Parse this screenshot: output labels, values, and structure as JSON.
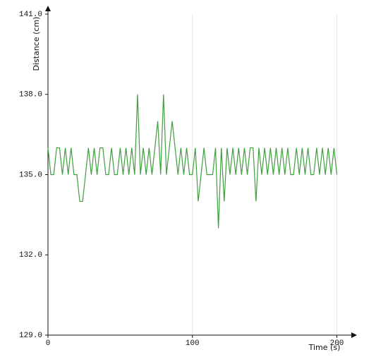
{
  "chart_data": {
    "type": "line",
    "x_label": "Time (s)",
    "y_label": "Distance (cm)",
    "x": [
      0,
      2,
      4,
      6,
      8,
      10,
      12,
      14,
      16,
      18,
      20,
      22,
      24,
      26,
      28,
      30,
      32,
      34,
      36,
      38,
      40,
      42,
      44,
      46,
      48,
      50,
      52,
      54,
      56,
      58,
      60,
      62,
      64,
      66,
      68,
      70,
      72,
      74,
      76,
      78,
      80,
      82,
      84,
      86,
      88,
      90,
      92,
      94,
      96,
      98,
      100,
      102,
      104,
      106,
      108,
      110,
      112,
      114,
      116,
      118,
      120,
      122,
      124,
      126,
      128,
      130,
      132,
      134,
      136,
      138,
      140,
      142,
      144,
      146,
      148,
      150,
      152,
      154,
      156,
      158,
      160,
      162,
      164,
      166,
      168,
      170,
      172,
      174,
      176,
      178,
      180,
      182,
      184,
      186,
      188,
      190,
      192,
      194,
      196,
      198,
      200
    ],
    "series": [
      {
        "color": "#3f9f3f",
        "values": [
          136,
          135,
          135,
          136,
          136,
          135,
          136,
          135,
          136,
          135,
          135,
          134,
          134,
          135,
          136,
          135,
          136,
          135,
          136,
          136,
          135,
          135,
          136,
          135,
          135,
          136,
          135,
          136,
          135,
          136,
          135,
          138,
          135,
          136,
          135,
          136,
          135,
          136,
          137,
          135,
          138,
          135,
          136,
          137,
          136,
          135,
          136,
          135,
          136,
          135,
          135,
          136,
          134,
          135,
          136,
          135,
          135,
          135,
          136,
          133,
          136,
          134,
          136,
          135,
          136,
          135,
          136,
          135,
          136,
          135,
          136,
          136,
          134,
          136,
          135,
          136,
          135,
          136,
          135,
          136,
          135,
          136,
          135,
          136,
          135,
          135,
          136,
          135,
          136,
          135,
          136,
          135,
          135,
          136,
          135,
          136,
          135,
          136,
          135,
          136,
          135
        ]
      }
    ],
    "xlim": [
      0,
      210
    ],
    "xticks": [
      0,
      100,
      200
    ],
    "ylim": [
      129,
      141
    ],
    "yticks": [
      {
        "value": 129,
        "label": "129.0"
      },
      {
        "value": 132,
        "label": "132.0"
      },
      {
        "value": 135,
        "label": "135.0"
      },
      {
        "value": 138,
        "label": "138.0"
      },
      {
        "value": 141,
        "label": "141.0"
      }
    ],
    "grid": "x"
  }
}
